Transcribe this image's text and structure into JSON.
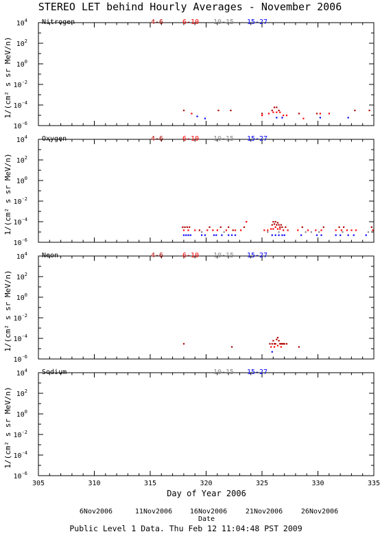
{
  "chart_data": [
    {
      "type": "scatter",
      "title": "STEREO LET behind Hourly Averages - November 2006",
      "panel": "Nitrogen",
      "ylabel": "1/(cm² s sr MeV/n)",
      "ylog": true,
      "ylim": [
        1e-06,
        10000.0
      ],
      "xlim": [
        305,
        335
      ],
      "legend": [
        "4-6",
        "6-10",
        "10-15",
        "15-27"
      ],
      "series": [
        {
          "name": "4-6",
          "color": "#b00000",
          "points": [
            [
              318.0,
              3e-05
            ],
            [
              321.1,
              3e-05
            ],
            [
              322.2,
              3e-05
            ],
            [
              325.0,
              1.5e-05
            ],
            [
              325.9,
              3e-05
            ],
            [
              326.1,
              6e-05
            ],
            [
              326.3,
              6e-05
            ],
            [
              326.5,
              3e-05
            ],
            [
              328.3,
              1.5e-05
            ],
            [
              329.9,
              1.5e-05
            ],
            [
              333.3,
              3e-05
            ],
            [
              334.6,
              3e-05
            ]
          ]
        },
        {
          "name": "6-10",
          "color": "#ff0000",
          "points": [
            [
              318.7,
              1.5e-05
            ],
            [
              325.0,
              1e-05
            ],
            [
              325.6,
              1.5e-05
            ],
            [
              326.0,
              2e-05
            ],
            [
              326.3,
              2e-05
            ],
            [
              326.6,
              2e-05
            ],
            [
              326.9,
              1e-05
            ],
            [
              327.2,
              1e-05
            ],
            [
              328.7,
              5e-06
            ],
            [
              330.2,
              1.5e-05
            ],
            [
              331.0,
              1.5e-05
            ]
          ]
        },
        {
          "name": "10-15",
          "color": "#888888",
          "points": []
        },
        {
          "name": "15-27",
          "color": "#0000ff",
          "points": [
            [
              319.2,
              8e-06
            ],
            [
              319.9,
              5e-06
            ],
            [
              326.3,
              6e-06
            ],
            [
              326.8,
              6e-06
            ],
            [
              330.2,
              6e-06
            ],
            [
              332.7,
              6e-06
            ]
          ]
        }
      ]
    },
    {
      "type": "scatter",
      "panel": "Oxygen",
      "ylabel": "1/(cm² s sr MeV/n)",
      "ylog": true,
      "ylim": [
        1e-06,
        10000.0
      ],
      "xlim": [
        305,
        335
      ],
      "legend": [
        "4-6",
        "6-10",
        "10-15",
        "15-27"
      ],
      "series": [
        {
          "name": "4-6",
          "color": "#b00000",
          "points": [
            [
              317.9,
              3e-05
            ],
            [
              318.1,
              3e-05
            ],
            [
              318.3,
              3e-05
            ],
            [
              318.5,
              3e-05
            ],
            [
              319.4,
              1.5e-05
            ],
            [
              320.3,
              3e-05
            ],
            [
              321.3,
              3e-05
            ],
            [
              322.0,
              3e-05
            ],
            [
              322.4,
              1.5e-05
            ],
            [
              323.4,
              3e-05
            ],
            [
              325.9,
              5e-05
            ],
            [
              326.0,
              0.0001
            ],
            [
              326.1,
              6e-05
            ],
            [
              326.2,
              0.0001
            ],
            [
              326.3,
              5e-05
            ],
            [
              326.4,
              8e-05
            ],
            [
              326.5,
              5e-05
            ],
            [
              326.6,
              3e-05
            ],
            [
              326.7,
              5e-05
            ],
            [
              326.8,
              3e-05
            ],
            [
              327.1,
              3e-05
            ],
            [
              328.6,
              3e-05
            ],
            [
              330.5,
              3e-05
            ],
            [
              331.9,
              3e-05
            ],
            [
              332.3,
              3e-05
            ],
            [
              334.8,
              3e-05
            ]
          ]
        },
        {
          "name": "6-10",
          "color": "#ff0000",
          "points": [
            [
              318.0,
              1.5e-05
            ],
            [
              318.4,
              1.5e-05
            ],
            [
              319.0,
              1.5e-05
            ],
            [
              320.1,
              1.5e-05
            ],
            [
              320.6,
              1.5e-05
            ],
            [
              321.0,
              1.5e-05
            ],
            [
              321.8,
              1.5e-05
            ],
            [
              322.6,
              1.5e-05
            ],
            [
              323.1,
              1.5e-05
            ],
            [
              323.6,
              0.0001
            ],
            [
              325.2,
              1.5e-05
            ],
            [
              325.5,
              1.5e-05
            ],
            [
              325.8,
              2e-05
            ],
            [
              326.0,
              2e-05
            ],
            [
              326.2,
              3e-05
            ],
            [
              326.4,
              2e-05
            ],
            [
              326.6,
              2e-05
            ],
            [
              326.9,
              1.5e-05
            ],
            [
              327.3,
              1.5e-05
            ],
            [
              328.2,
              1.5e-05
            ],
            [
              329.1,
              1.5e-05
            ],
            [
              329.8,
              1.5e-05
            ],
            [
              330.3,
              1.5e-05
            ],
            [
              331.6,
              1.5e-05
            ],
            [
              332.1,
              1.5e-05
            ],
            [
              332.6,
              1.5e-05
            ],
            [
              333.0,
              1.5e-05
            ],
            [
              333.4,
              1.5e-05
            ],
            [
              334.9,
              1.5e-05
            ]
          ]
        },
        {
          "name": "10-15",
          "color": "#888888",
          "points": [
            [
              319.6,
              1e-05
            ],
            [
              321.6,
              1e-05
            ],
            [
              325.5,
              1e-05
            ],
            [
              326.5,
              1e-05
            ],
            [
              328.9,
              1e-05
            ],
            [
              329.4,
              1e-05
            ],
            [
              330.1,
              1e-05
            ],
            [
              332.2,
              1e-05
            ],
            [
              334.5,
              1e-05
            ]
          ]
        },
        {
          "name": "15-27",
          "color": "#0000ff",
          "points": [
            [
              318.0,
              5e-06
            ],
            [
              318.2,
              5e-06
            ],
            [
              318.4,
              5e-06
            ],
            [
              318.6,
              5e-06
            ],
            [
              319.6,
              5e-06
            ],
            [
              319.9,
              5e-06
            ],
            [
              320.7,
              5e-06
            ],
            [
              320.9,
              5e-06
            ],
            [
              321.4,
              5e-06
            ],
            [
              322.0,
              5e-06
            ],
            [
              322.3,
              5e-06
            ],
            [
              322.6,
              5e-06
            ],
            [
              325.9,
              5e-06
            ],
            [
              326.2,
              5e-06
            ],
            [
              326.5,
              5e-06
            ],
            [
              326.8,
              5e-06
            ],
            [
              327.0,
              5e-06
            ],
            [
              328.5,
              5e-06
            ],
            [
              329.9,
              5e-06
            ],
            [
              330.3,
              5e-06
            ],
            [
              331.6,
              5e-06
            ],
            [
              332.0,
              5e-06
            ],
            [
              332.7,
              5e-06
            ],
            [
              333.2,
              5e-06
            ],
            [
              334.3,
              5e-06
            ]
          ]
        }
      ]
    },
    {
      "type": "scatter",
      "panel": "Neon",
      "ylabel": "1/(cm² s sr MeV/n)",
      "ylog": true,
      "ylim": [
        1e-06,
        10000.0
      ],
      "xlim": [
        305,
        335
      ],
      "legend": [
        "4-6",
        "6-10",
        "10-15",
        "15-27"
      ],
      "series": [
        {
          "name": "4-6",
          "color": "#b00000",
          "points": [
            [
              318.0,
              3e-05
            ],
            [
              322.3,
              1.5e-05
            ],
            [
              325.7,
              3e-05
            ],
            [
              325.9,
              3e-05
            ],
            [
              326.0,
              6e-05
            ],
            [
              326.1,
              3e-05
            ],
            [
              326.2,
              3e-05
            ],
            [
              326.3,
              8e-05
            ],
            [
              326.4,
              0.00012
            ],
            [
              326.5,
              6e-05
            ],
            [
              326.6,
              3e-05
            ],
            [
              326.7,
              3e-05
            ],
            [
              326.8,
              3e-05
            ],
            [
              326.9,
              3e-05
            ],
            [
              327.0,
              3e-05
            ],
            [
              327.2,
              3e-05
            ],
            [
              328.3,
              1.5e-05
            ]
          ]
        },
        {
          "name": "6-10",
          "color": "#ff0000",
          "points": [
            [
              325.8,
              1.5e-05
            ],
            [
              326.1,
              1.5e-05
            ],
            [
              326.4,
              2e-05
            ],
            [
              326.7,
              1.5e-05
            ]
          ]
        },
        {
          "name": "10-15",
          "color": "#888888",
          "points": []
        },
        {
          "name": "15-27",
          "color": "#0000ff",
          "points": [
            [
              325.9,
              5e-06
            ]
          ]
        }
      ]
    },
    {
      "type": "scatter",
      "panel": "Sodium",
      "ylabel": "1/(cm² s sr MeV/n)",
      "ylog": true,
      "ylim": [
        1e-06,
        10000.0
      ],
      "xlim": [
        305,
        335
      ],
      "xlabel": "Day of Year 2006",
      "xticks": [
        305,
        310,
        315,
        320,
        325,
        330,
        335
      ],
      "legend": [
        "10-15",
        "15-27"
      ],
      "series": [
        {
          "name": "10-15",
          "color": "#888888",
          "points": []
        },
        {
          "name": "15-27",
          "color": "#0000ff",
          "points": []
        }
      ]
    }
  ],
  "date_labels": [
    "6Nov2006",
    "11Nov2006",
    "16Nov2006",
    "21Nov2006",
    "26Nov2006"
  ],
  "footer": "Public Level 1 Data. Thu Feb 12 11:04:48 PST 2009",
  "legend_colors": {
    "4-6": "#b00000",
    "6-10": "#ff0000",
    "10-15": "#888888",
    "15-27": "#0000ff"
  }
}
